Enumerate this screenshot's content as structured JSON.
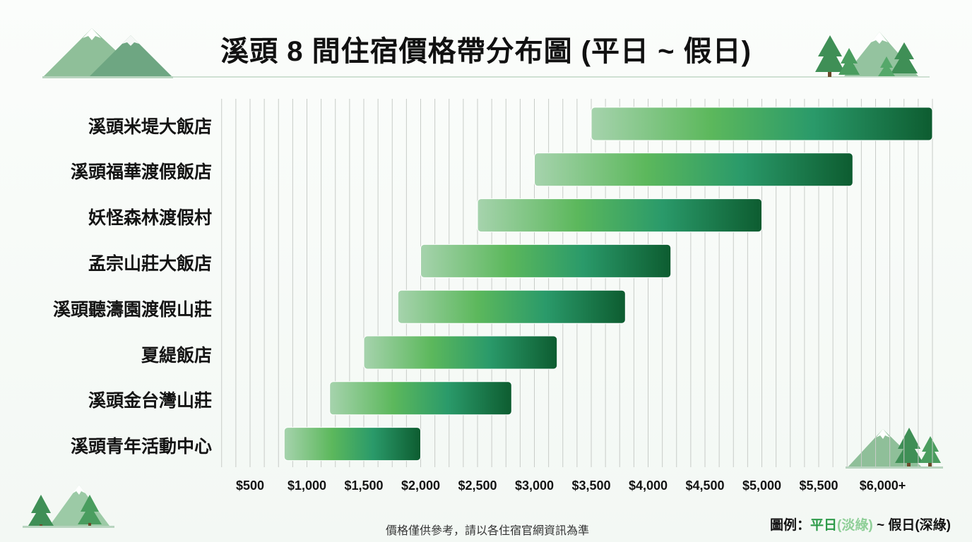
{
  "title": "溪頭 8 間住宿價格帶分布圖 (平日 ~ 假日)",
  "footnote": "價格僅供參考，請以各住宿官網資訊為準",
  "legend": {
    "prefix": "圖例：",
    "weekday": "平日",
    "weekday_note": "(淡綠)",
    "separator": " ~ ",
    "weekend": "假日",
    "weekend_note": "(深綠)"
  },
  "colors": {
    "light_green": "#a6d3ad",
    "mid_green": "#5cb85c",
    "teal_green": "#2a9a6a",
    "dark_green": "#0d5c30",
    "grid": "#c8ccc8"
  },
  "chart_data": {
    "type": "bar",
    "orientation": "horizontal-range",
    "title": "溪頭 8 間住宿價格帶分布圖 (平日 ~ 假日)",
    "x_ticks": [
      "$500",
      "$1,000",
      "$1,500",
      "$2,000",
      "$2,500",
      "$3,000",
      "$3,500",
      "$4,000",
      "$4,500",
      "$5,000",
      "$5,500",
      "$6,000+"
    ],
    "x_tick_values": [
      500,
      1000,
      1500,
      2000,
      2500,
      3000,
      3500,
      4000,
      4500,
      5000,
      5500,
      6000
    ],
    "xlim": [
      500,
      6500
    ],
    "grid": true,
    "categories": [
      "溪頭米堤大飯店",
      "溪頭福華渡假飯店",
      "妖怪森林渡假村",
      "孟宗山莊大飯店",
      "溪頭聽濤園渡假山莊",
      "夏緹飯店",
      "溪頭金台灣山莊",
      "溪頭青年活動中心"
    ],
    "series": [
      {
        "name": "平日",
        "values": [
          3500,
          3000,
          2500,
          2000,
          1800,
          1500,
          1200,
          800
        ]
      },
      {
        "name": "假日",
        "values": [
          6500,
          5800,
          5000,
          4200,
          3800,
          3200,
          2800,
          2000
        ]
      }
    ]
  }
}
